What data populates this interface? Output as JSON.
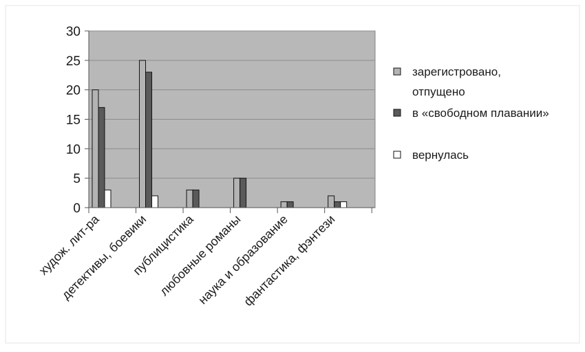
{
  "chart_data": {
    "type": "bar",
    "categories": [
      "худож. лит-ра",
      "детективы, боевики",
      "публицистика",
      "любовные романы",
      "наука и образование",
      "фантастика, фэнтези"
    ],
    "series": [
      {
        "name": "зарегистровано, отпущено",
        "legend_lines": [
          "зарегистровано,",
          "отпущено"
        ],
        "values": [
          20,
          25,
          3,
          5,
          1,
          2
        ],
        "color": "#b3b3b3"
      },
      {
        "name": "в «свободном плавании»",
        "legend_lines": [
          "в «свободном плавании»"
        ],
        "values": [
          17,
          23,
          3,
          5,
          1,
          1
        ],
        "color": "#5a5a5a"
      },
      {
        "name": "вернулась",
        "legend_lines": [
          "вернулась"
        ],
        "values": [
          3,
          2,
          0,
          0,
          0,
          1
        ],
        "color": "#ffffff"
      }
    ],
    "y_ticks": [
      "0",
      "5",
      "10",
      "15",
      "20",
      "25",
      "30"
    ],
    "ylim": [
      0,
      30
    ],
    "grid": true,
    "legend_position": "right",
    "plot_background": "#b8b8b8"
  }
}
